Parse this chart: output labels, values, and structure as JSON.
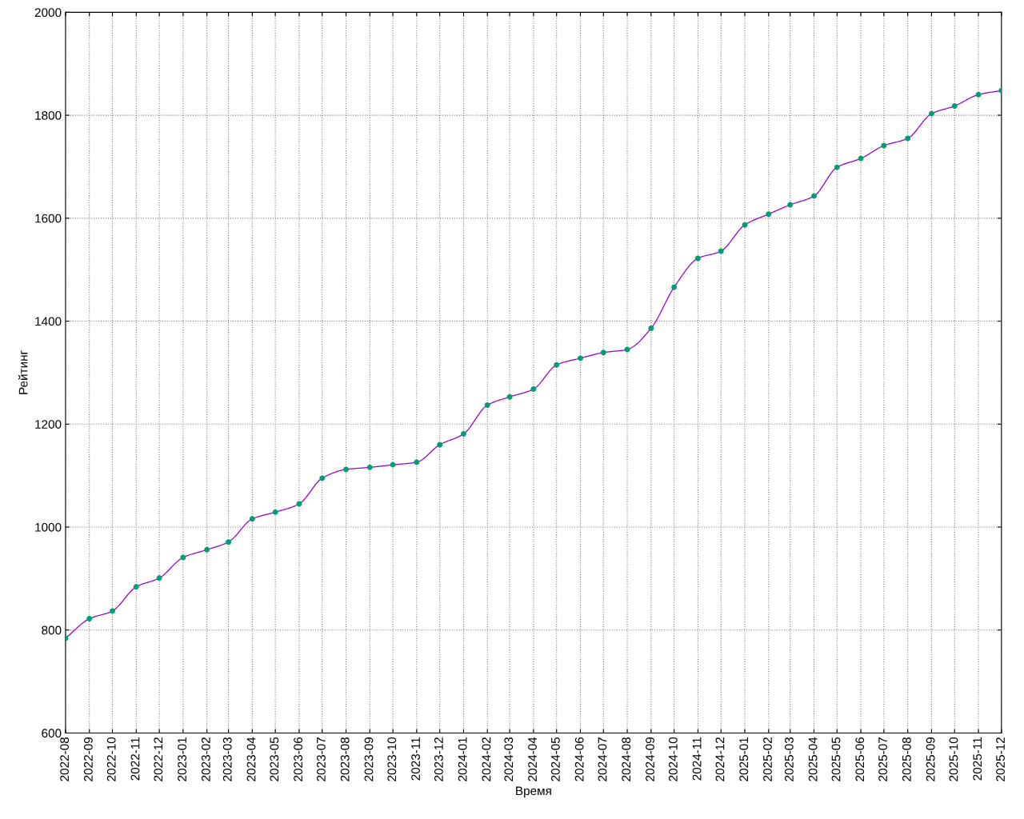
{
  "chart_data": {
    "type": "line",
    "xlabel": "Время",
    "ylabel": "Рейтинг",
    "x": [
      "2022-08",
      "2022-09",
      "2022-10",
      "2022-11",
      "2022-12",
      "2023-01",
      "2023-02",
      "2023-03",
      "2023-04",
      "2023-05",
      "2023-06",
      "2023-07",
      "2023-08",
      "2023-09",
      "2023-10",
      "2023-11",
      "2023-12",
      "2024-01",
      "2024-02",
      "2024-03",
      "2024-04",
      "2024-05",
      "2024-06",
      "2024-07",
      "2024-08",
      "2024-09",
      "2024-10",
      "2024-11",
      "2024-12",
      "2025-01",
      "2025-02",
      "2025-03",
      "2025-04",
      "2025-05",
      "2025-06",
      "2025-07",
      "2025-08",
      "2025-09",
      "2025-10",
      "2025-11",
      "2025-12"
    ],
    "series": [
      {
        "color": "#9400d3",
        "marker": "none",
        "values": [
          784,
          822,
          837,
          884,
          901,
          941,
          956,
          971,
          1016,
          1029,
          1045,
          1095,
          1112,
          1116,
          1121,
          1126,
          1160,
          1181,
          1237,
          1253,
          1268,
          1315,
          1328,
          1339,
          1345,
          1386,
          1466,
          1522,
          1536,
          1587,
          1608,
          1626,
          1643,
          1699,
          1716,
          1741,
          1755,
          1803,
          1818,
          1840,
          1848
        ]
      },
      {
        "type": "scatter",
        "color": "#009e73",
        "marker": "circle",
        "values": [
          784,
          822,
          837,
          884,
          901,
          941,
          956,
          971,
          1016,
          1029,
          1045,
          1095,
          1112,
          1116,
          1121,
          1126,
          1160,
          1181,
          1237,
          1253,
          1268,
          1315,
          1328,
          1339,
          1345,
          1386,
          1466,
          1522,
          1536,
          1587,
          1608,
          1626,
          1643,
          1699,
          1716,
          1741,
          1755,
          1803,
          1818,
          1840,
          1848
        ]
      }
    ],
    "xlim": [
      "2022-08",
      "2025-12"
    ],
    "xticks": [
      "2022-08",
      "2022-09",
      "2022-10",
      "2022-11",
      "2022-12",
      "2023-01",
      "2023-02",
      "2023-03",
      "2023-04",
      "2023-05",
      "2023-06",
      "2023-07",
      "2023-08",
      "2023-09",
      "2023-10",
      "2023-11",
      "2023-12",
      "2024-01",
      "2024-02",
      "2024-03",
      "2024-04",
      "2024-05",
      "2024-06",
      "2024-07",
      "2024-08",
      "2024-09",
      "2024-10",
      "2024-11",
      "2024-12",
      "2025-01",
      "2025-02",
      "2025-03",
      "2025-04",
      "2025-05",
      "2025-06",
      "2025-07",
      "2025-08",
      "2025-09",
      "2025-10",
      "2025-11",
      "2025-12"
    ],
    "ylim": [
      600,
      2000
    ],
    "yticks": [
      600,
      800,
      1000,
      1200,
      1400,
      1600,
      1800,
      2000
    ],
    "grid": true
  }
}
